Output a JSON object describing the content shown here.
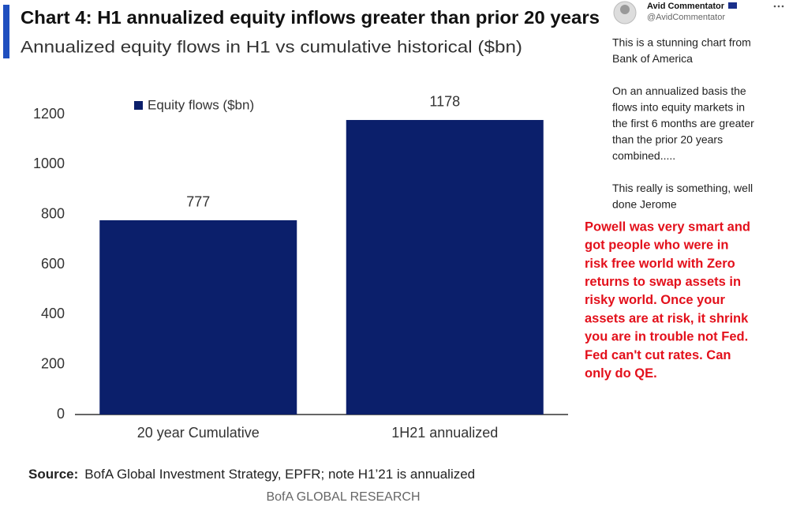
{
  "chart_data": {
    "type": "bar",
    "title": "Chart 4: H1 annualized equity inflows greater than prior 20 years",
    "subtitle": "Annualized equity flows in H1 vs cumulative historical ($bn)",
    "categories": [
      "20 year Cumulative",
      "1H21 annualized"
    ],
    "series": [
      {
        "name": "Equity flows ($bn)",
        "color": "#0b1f6b",
        "values": [
          777,
          1178
        ]
      }
    ],
    "ylim": [
      0,
      1200
    ],
    "yticks": [
      0,
      200,
      400,
      600,
      800,
      1000,
      1200
    ],
    "grid": false,
    "legend": "top-left",
    "source_label": "Source:",
    "source": "BofA Global Investment Strategy, EPFR;  note H1’21  is annualized",
    "footer": "BofA GLOBAL RESEARCH"
  },
  "tweet": {
    "name": "Avid Commentator",
    "handle": "@AvidCommentator",
    "paragraphs": [
      [
        "This is a stunning chart from",
        "Bank of America"
      ],
      [
        "On an annualized basis the",
        "flows into equity markets in",
        "the first 6 months are greater",
        "than the prior 20 years",
        "combined....."
      ],
      [
        "This really is something, well",
        "done Jerome"
      ]
    ]
  },
  "annotation": [
    "Powell was very smart and",
    "got people who were in",
    "risk free world with Zero",
    "returns to swap assets in",
    "risky world. Once your",
    "assets are at risk, it shrink",
    "you are in trouble not Fed.",
    "Fed can't cut rates. Can",
    "only do QE."
  ]
}
